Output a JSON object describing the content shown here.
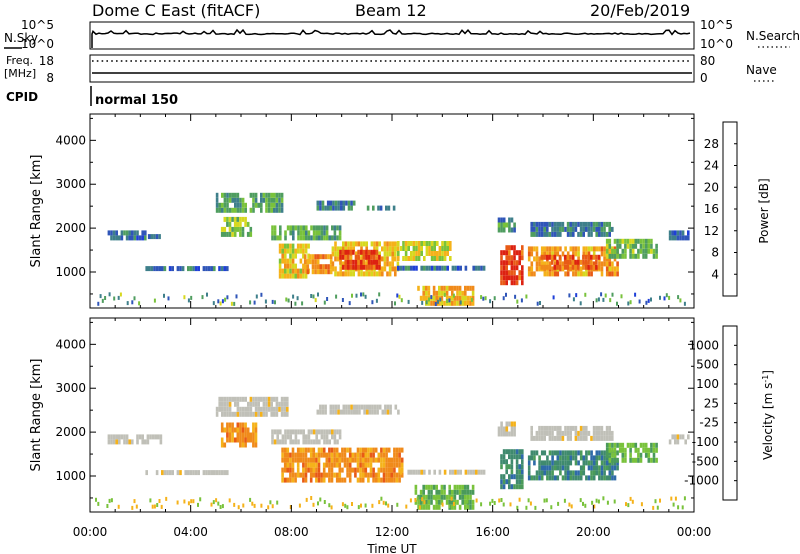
{
  "header": {
    "station": "Dome C East (fitACF)",
    "beam": "Beam 12",
    "date": "20/Feb/2019"
  },
  "status_panel": {
    "nsky_label": "N.Sky",
    "nsearch_label": "N.Search",
    "nsky_ticks": [
      "10^5",
      "10^0"
    ],
    "nsearch_ticks": [
      "10^5",
      "10^0"
    ],
    "freq_label_1": "Freq.",
    "freq_label_2": "[MHz]",
    "freq_ticks": [
      "18",
      "8"
    ],
    "nave_label": "Nave",
    "nave_ticks": [
      "80",
      "0"
    ],
    "cpid_label": "CPID",
    "cpid_value": "normal 150"
  },
  "chart_data": [
    {
      "type": "heatmap",
      "title": "",
      "xlabel": "Time UT",
      "ylabel": "Slant Range [km]",
      "x_ticks": [
        "00:00",
        "04:00",
        "08:00",
        "12:00",
        "16:00",
        "20:00",
        "00:00"
      ],
      "y_ticks": [
        "1000",
        "2000",
        "3000",
        "4000"
      ],
      "xlim_hours": [
        0,
        24
      ],
      "ylim_km": [
        180,
        4600
      ],
      "colorbar": {
        "label": "Power [dB]",
        "ticks": [
          "4",
          "8",
          "12",
          "16",
          "20",
          "24",
          "28"
        ],
        "colors": [
          "#1f3fd8",
          "#2f55b8",
          "#3e7f8a",
          "#4f9d5f",
          "#79c23b",
          "#d7d81f",
          "#f5b21a",
          "#f08a1a",
          "#e85a16",
          "#dd2211"
        ]
      },
      "regions": [
        {
          "t0": 0.7,
          "t1": 2.2,
          "r0": 1720,
          "r1": 1900,
          "value": 6
        },
        {
          "t0": 2.3,
          "t1": 2.8,
          "r0": 1750,
          "r1": 1850,
          "value": 7
        },
        {
          "t0": 2.2,
          "t1": 5.5,
          "r0": 1020,
          "r1": 1100,
          "value": 6
        },
        {
          "t0": 5.0,
          "t1": 7.6,
          "r0": 2350,
          "r1": 2750,
          "value": 10
        },
        {
          "t0": 5.2,
          "t1": 6.4,
          "r0": 1800,
          "r1": 2200,
          "value": 14
        },
        {
          "t0": 7.2,
          "t1": 9.9,
          "r0": 1720,
          "r1": 2050,
          "value": 11
        },
        {
          "t0": 7.5,
          "t1": 8.7,
          "r0": 850,
          "r1": 1550,
          "value": 18
        },
        {
          "t0": 8.5,
          "t1": 9.6,
          "r0": 950,
          "r1": 1300,
          "value": 22
        },
        {
          "t0": 9.6,
          "t1": 12.2,
          "r0": 900,
          "r1": 1600,
          "value": 19
        },
        {
          "t0": 9.9,
          "t1": 11.5,
          "r0": 1050,
          "r1": 1400,
          "value": 27
        },
        {
          "t0": 12.2,
          "t1": 14.3,
          "r0": 1250,
          "r1": 1600,
          "value": 16
        },
        {
          "t0": 12.2,
          "t1": 15.7,
          "r0": 1030,
          "r1": 1110,
          "value": 6
        },
        {
          "t0": 13.0,
          "t1": 15.2,
          "r0": 230,
          "r1": 600,
          "value": 20
        },
        {
          "t0": 16.3,
          "t1": 17.2,
          "r0": 700,
          "r1": 1600,
          "value": 27
        },
        {
          "t0": 16.2,
          "t1": 16.9,
          "r0": 1900,
          "r1": 2200,
          "value": 9
        },
        {
          "t0": 17.4,
          "t1": 21.0,
          "r0": 900,
          "r1": 1550,
          "value": 21
        },
        {
          "t0": 17.9,
          "t1": 20.2,
          "r0": 1050,
          "r1": 1350,
          "value": 26
        },
        {
          "t0": 17.5,
          "t1": 20.8,
          "r0": 1800,
          "r1": 2100,
          "value": 7
        },
        {
          "t0": 20.5,
          "t1": 22.5,
          "r0": 1300,
          "r1": 1750,
          "value": 13
        },
        {
          "t0": 23.0,
          "t1": 23.8,
          "r0": 1720,
          "r1": 1850,
          "value": 6
        },
        {
          "t0": 9.0,
          "t1": 10.5,
          "r0": 2400,
          "r1": 2550,
          "value": 7
        },
        {
          "t0": 11.0,
          "t1": 12.3,
          "r0": 2400,
          "r1": 2500,
          "value": 7
        }
      ]
    },
    {
      "type": "heatmap",
      "title": "",
      "xlabel": "Time UT",
      "ylabel": "Slant Range [km]",
      "x_ticks": [
        "00:00",
        "04:00",
        "08:00",
        "12:00",
        "16:00",
        "20:00",
        "00:00"
      ],
      "y_ticks": [
        "1000",
        "2000",
        "3000",
        "4000"
      ],
      "xlim_hours": [
        0,
        24
      ],
      "ylim_km": [
        180,
        4600
      ],
      "colorbar": {
        "label": "Velocity [m s^-1]",
        "ticks": [
          "1000",
          "500",
          "100",
          "25",
          "-25",
          "-100",
          "-500",
          "-1000"
        ],
        "colors": [
          "#2a45c4",
          "#2e6aa8",
          "#3f8a6e",
          "#4a9a5a",
          "#79c23b",
          "#c0c0b8",
          "#f5b21a",
          "#f08a1a",
          "#e85a16",
          "#dd2211"
        ]
      },
      "regions": [
        {
          "t0": 0.7,
          "t1": 2.8,
          "r0": 1720,
          "r1": 1900,
          "value": 0
        },
        {
          "t0": 2.2,
          "t1": 5.5,
          "r0": 1020,
          "r1": 1100,
          "value": 0
        },
        {
          "t0": 5.0,
          "t1": 7.8,
          "r0": 2350,
          "r1": 2800,
          "value": 0
        },
        {
          "t0": 5.2,
          "t1": 6.6,
          "r0": 1650,
          "r1": 2200,
          "value": -150
        },
        {
          "t0": 7.2,
          "t1": 9.9,
          "r0": 1720,
          "r1": 2050,
          "value": 0
        },
        {
          "t0": 7.6,
          "t1": 12.4,
          "r0": 850,
          "r1": 1600,
          "value": -150
        },
        {
          "t0": 9.0,
          "t1": 12.3,
          "r0": 2400,
          "r1": 2550,
          "value": 0
        },
        {
          "t0": 12.2,
          "t1": 15.7,
          "r0": 1030,
          "r1": 1110,
          "value": 0
        },
        {
          "t0": 12.9,
          "t1": 15.2,
          "r0": 230,
          "r1": 700,
          "value": 80
        },
        {
          "t0": 16.3,
          "t1": 17.2,
          "r0": 700,
          "r1": 1600,
          "value": 300
        },
        {
          "t0": 16.2,
          "t1": 16.9,
          "r0": 1900,
          "r1": 2200,
          "value": 0
        },
        {
          "t0": 17.4,
          "t1": 21.0,
          "r0": 900,
          "r1": 1550,
          "value": 300
        },
        {
          "t0": 17.5,
          "t1": 20.8,
          "r0": 1800,
          "r1": 2100,
          "value": 0
        },
        {
          "t0": 20.5,
          "t1": 22.5,
          "r0": 1300,
          "r1": 1750,
          "value": 80
        },
        {
          "t0": 23.0,
          "t1": 23.8,
          "r0": 1720,
          "r1": 1850,
          "value": 0
        }
      ]
    }
  ]
}
